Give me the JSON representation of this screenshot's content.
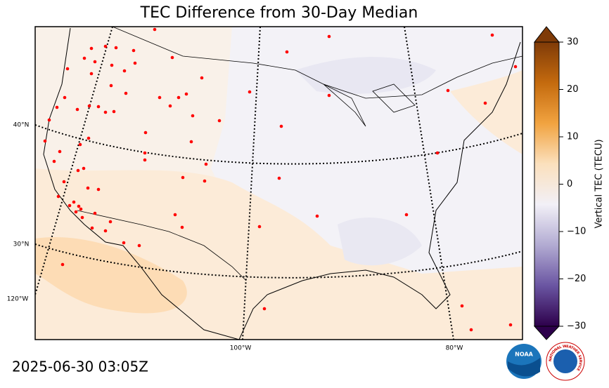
{
  "title": "TEC Difference from 30-Day Median",
  "timestamp": "2025-06-30 03:05Z",
  "map": {
    "lat_labels": [
      "40°N",
      "30°N"
    ],
    "lon_labels": [
      "120°W",
      "100°W",
      "80°W"
    ]
  },
  "colorbar": {
    "label": "Vertical TEC (TECU)",
    "lim": [
      -30,
      30
    ],
    "ticks": [
      30,
      20,
      10,
      0,
      {
        "value": -10,
        "label": "−10"
      },
      {
        "value": -20,
        "label": "−20"
      },
      {
        "value": -30,
        "label": "−30"
      }
    ],
    "colors": [
      "#2d004b",
      "#6a55a2",
      "#b2abd2",
      "#f2f0f7",
      "#fbe0bd",
      "#f1a340",
      "#c46a0e",
      "#7f3b08"
    ]
  },
  "logos": {
    "noaa": "NOAA",
    "nws": "NATIONAL WEATHER SERVICE"
  }
}
